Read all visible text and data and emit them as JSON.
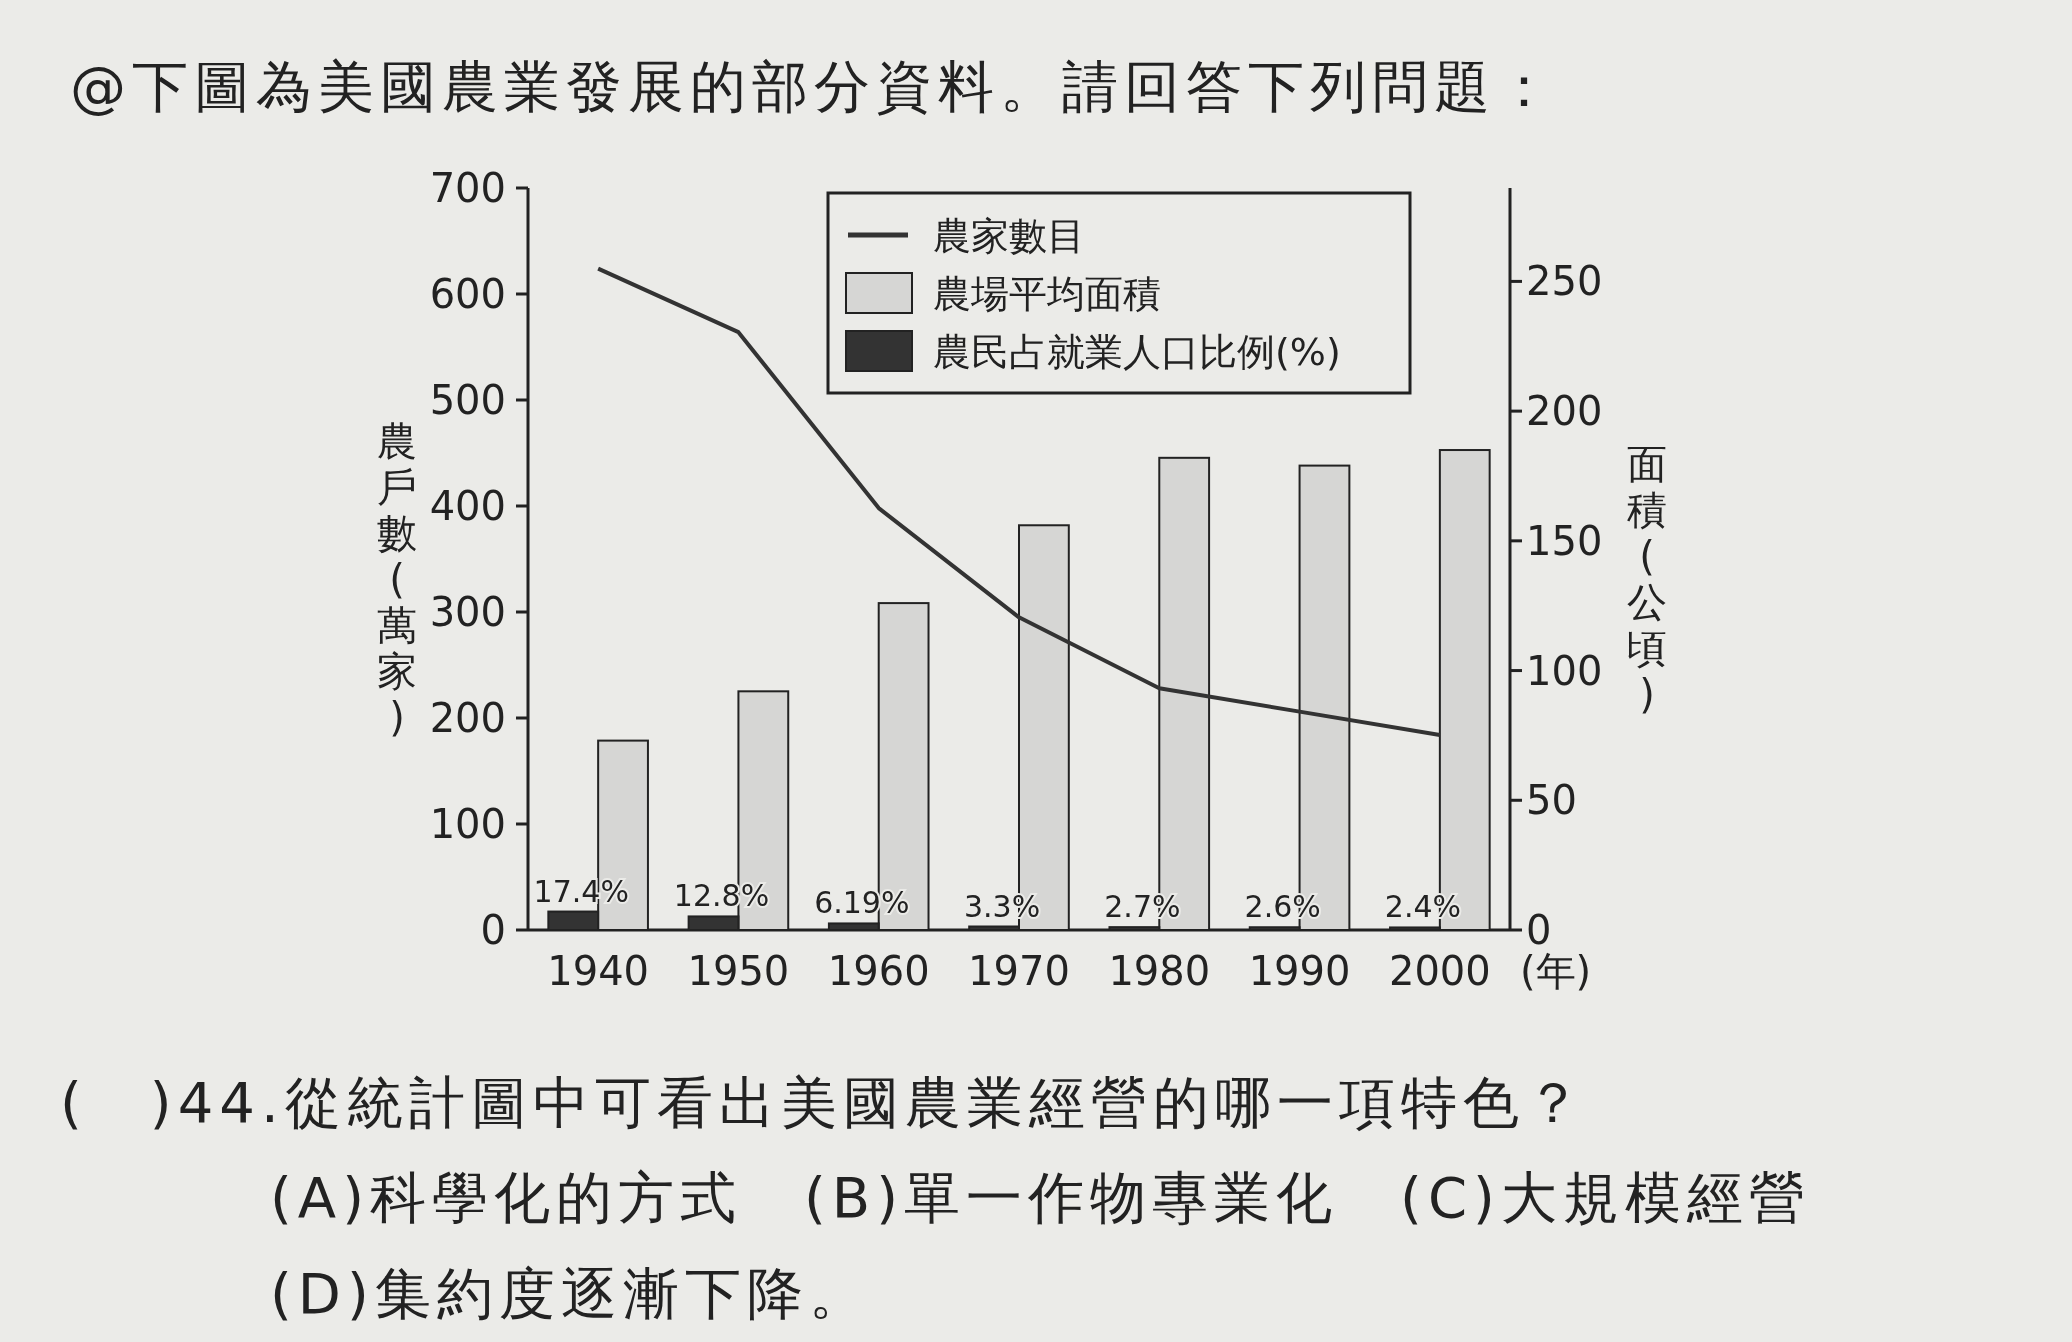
{
  "chart_data": {
    "type": "bar",
    "title": "@下圖為美國農業發展的部分資料。請回答下列問題：",
    "categories": [
      "1940",
      "1950",
      "1960",
      "1970",
      "1980",
      "1990",
      "2000"
    ],
    "xlabel": "(年)",
    "ylabel": "農戶數(萬家)",
    "y2label": "面積(公頃)",
    "ylim": [
      0,
      700
    ],
    "yticks": [
      0,
      100,
      200,
      300,
      400,
      500,
      600,
      700
    ],
    "y2lim": [
      0,
      286
    ],
    "y2ticks": [
      0,
      50,
      100,
      150,
      200,
      250
    ],
    "legend": "top right",
    "grid": false,
    "series": [
      {
        "name": "農家數目",
        "type": "line",
        "color": "#333333",
        "values": [
          624,
          564,
          398,
          295,
          228,
          206,
          184
        ]
      },
      {
        "name": "農場平均面積",
        "axis": "y2",
        "color": "#d6d6d4",
        "values": [
          73,
          92,
          126,
          156,
          182,
          179,
          185
        ]
      },
      {
        "name": "農民占就業人口比例(%)",
        "color": "#333333",
        "values": [
          17.4,
          12.8,
          6.19,
          3.3,
          2.7,
          2.6,
          2.4
        ],
        "value_labels": [
          "17.4%",
          "12.8%",
          "6.19%",
          "3.3%",
          "2.7%",
          "2.6%",
          "2.4%"
        ]
      }
    ],
    "annotations": [
      "(　)44.從統計圖中可看出美國農業經營的哪一項特色？",
      "(A)科學化的方式　(B)單一作物專業化　(C)大規模經營　(D)集約度逐漸下降。"
    ]
  }
}
